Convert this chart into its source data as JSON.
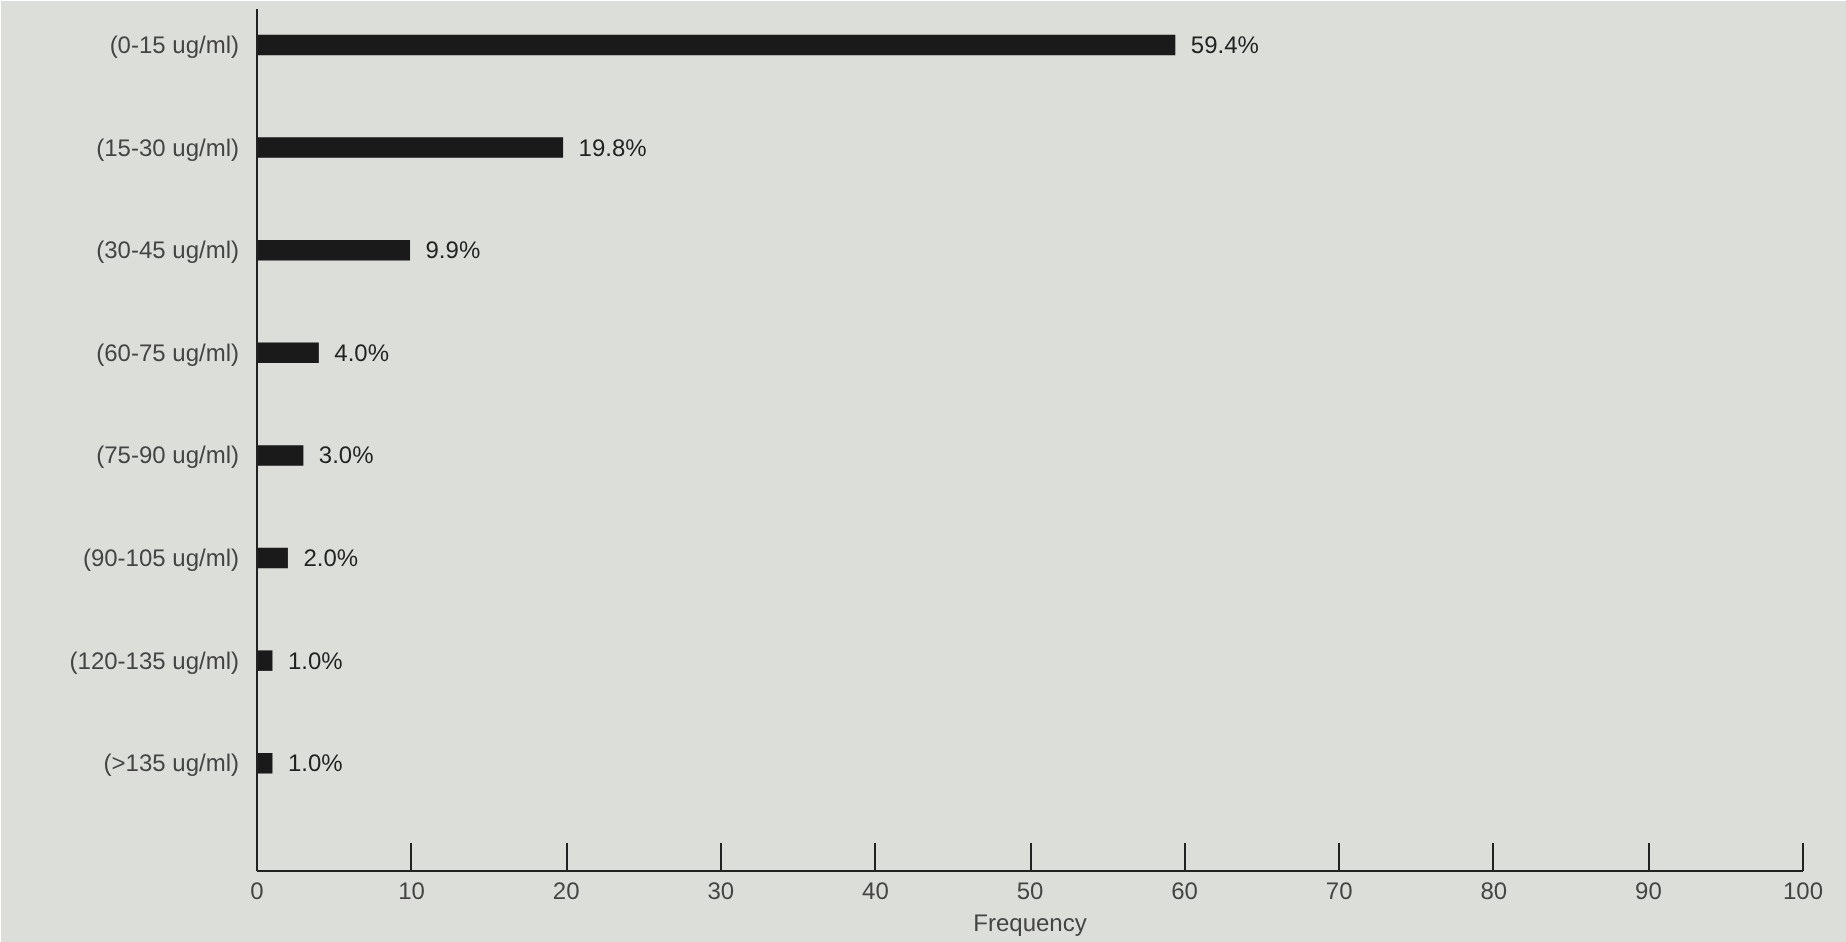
{
  "chart_data": {
    "type": "bar",
    "orientation": "horizontal",
    "xlabel": "Frequency",
    "categories": [
      "(0-15 ug/ml)",
      "(15-30 ug/ml)",
      "(30-45 ug/ml)",
      "(60-75 ug/ml)",
      "(75-90 ug/ml)",
      "(90-105 ug/ml)",
      "(120-135 ug/ml)",
      "(>135 ug/ml)"
    ],
    "values": [
      59.4,
      19.8,
      9.9,
      4.0,
      3.0,
      2.0,
      1.0,
      1.0
    ],
    "value_labels": [
      "59.4%",
      "19.8%",
      "9.9%",
      "4.0%",
      "3.0%",
      "2.0%",
      "1.0%",
      "1.0%"
    ],
    "color": "#1a1a1a",
    "xlim": [
      0,
      100
    ],
    "xticks": [
      0,
      10,
      20,
      30,
      40,
      50,
      60,
      70,
      80,
      90,
      100
    ],
    "grid": false
  }
}
